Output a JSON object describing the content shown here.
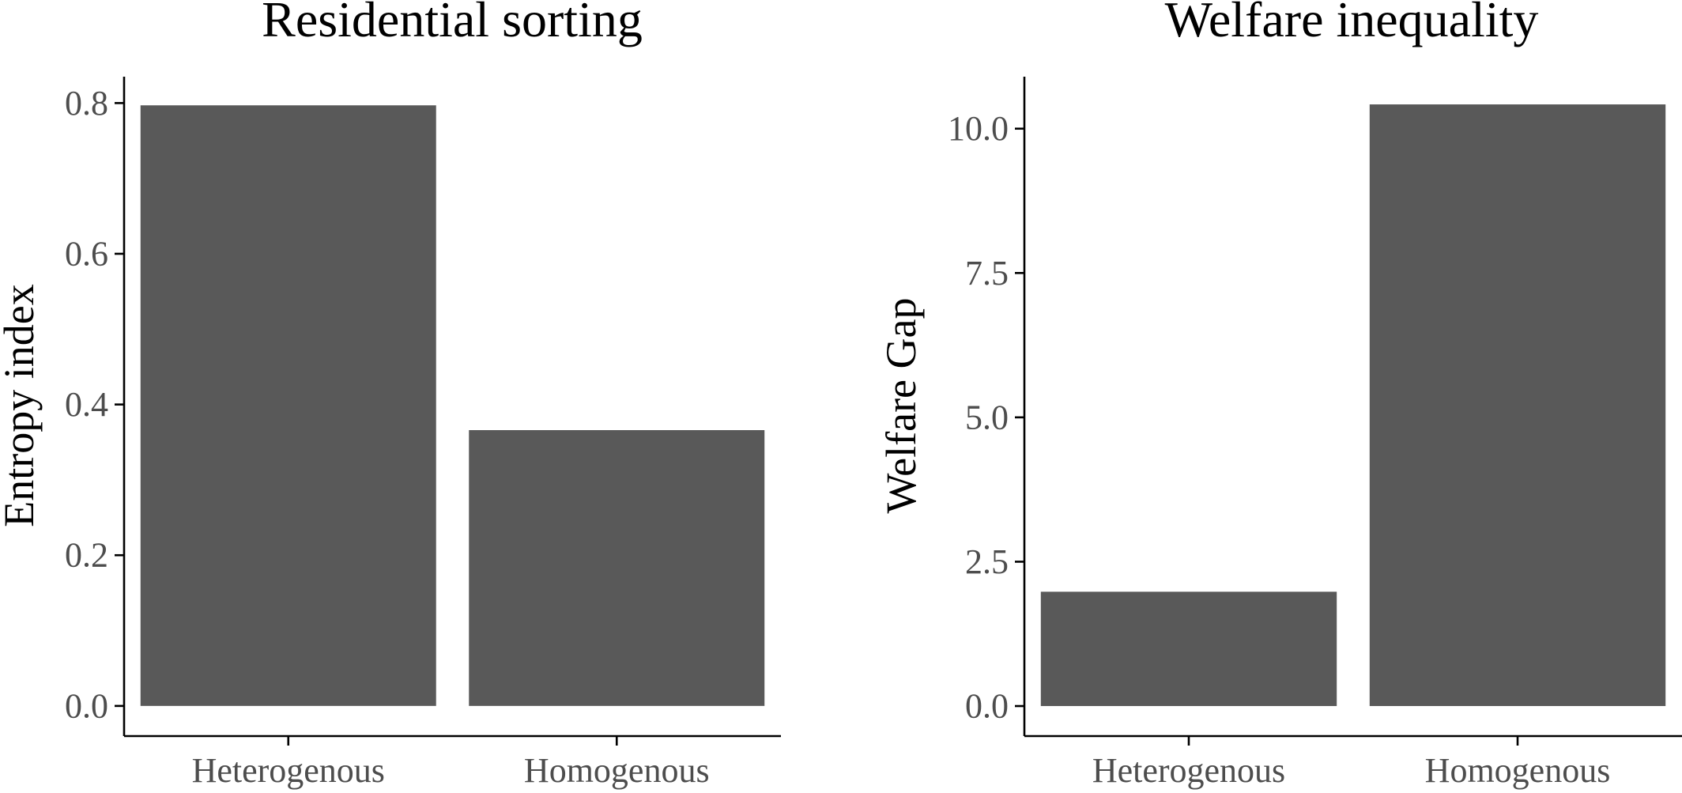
{
  "chart_data": [
    {
      "type": "bar",
      "title": "Residential sorting",
      "xlabel": "",
      "ylabel": "Entropy index",
      "categories": [
        "Heterogenous",
        "Homogenous"
      ],
      "values": [
        0.797,
        0.366
      ],
      "ylim": [
        -0.04,
        0.835
      ],
      "yticks": [
        0.0,
        0.2,
        0.4,
        0.6,
        0.8
      ],
      "ytick_labels": [
        "0.0",
        "0.2",
        "0.4",
        "0.6",
        "0.8"
      ],
      "bar_color": "#595959",
      "grid": false,
      "legend": "none"
    },
    {
      "type": "bar",
      "title": "Welfare inequality",
      "xlabel": "",
      "ylabel": "Welfare Gap",
      "categories": [
        "Heterogenous",
        "Homogenous"
      ],
      "values": [
        1.98,
        10.42
      ],
      "ylim": [
        -0.52,
        10.9
      ],
      "yticks": [
        0.0,
        2.5,
        5.0,
        7.5,
        10.0
      ],
      "ytick_labels": [
        "0.0",
        "2.5",
        "5.0",
        "7.5",
        "10.0"
      ],
      "bar_color": "#595959",
      "grid": false,
      "legend": "none"
    }
  ]
}
